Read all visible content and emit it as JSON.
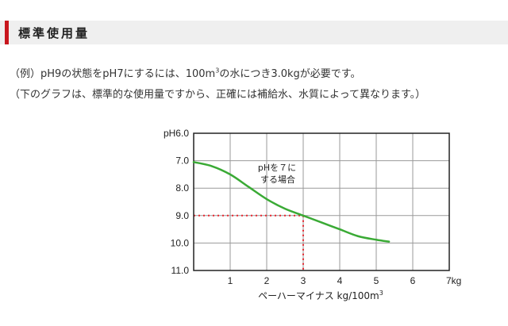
{
  "header": {
    "title": "標準使用量",
    "accent_color": "#c8161d"
  },
  "description": {
    "line1_pre": "（例）pH9の状態をpH7にするには、100m",
    "line1_sup": "3",
    "line1_post": "の水につき3.0kgが必要です。",
    "line2": "（下のグラフは、標準的な使用量ですから、正確には補給水、水質によって異なります。）"
  },
  "chart_data": {
    "type": "line",
    "xlabel_main": "ペーハーマイナス kg/100m",
    "xlabel_sup": "3",
    "x_ticks": [
      "1",
      "2",
      "3",
      "4",
      "5",
      "6",
      "7kg"
    ],
    "y_ticks": [
      "pH6.0",
      "7.0",
      "8.0",
      "9.0",
      "10.0",
      "11.0"
    ],
    "xlim": [
      0,
      7
    ],
    "ylim": [
      6,
      11
    ],
    "y_inverted": true,
    "grid": true,
    "series": [
      {
        "color": "#3aaa35",
        "points": [
          [
            0,
            7.05
          ],
          [
            0.5,
            7.2
          ],
          [
            1,
            7.5
          ],
          [
            1.5,
            7.95
          ],
          [
            2,
            8.4
          ],
          [
            2.5,
            8.75
          ],
          [
            3,
            9.0
          ],
          [
            3.5,
            9.25
          ],
          [
            4,
            9.5
          ],
          [
            4.5,
            9.75
          ],
          [
            5,
            9.88
          ],
          [
            5.35,
            9.95
          ]
        ]
      }
    ],
    "reference": {
      "x": 3,
      "y": 9,
      "color": "#e8262e"
    },
    "annotation": [
      "pHを７に",
      "する場合"
    ]
  }
}
